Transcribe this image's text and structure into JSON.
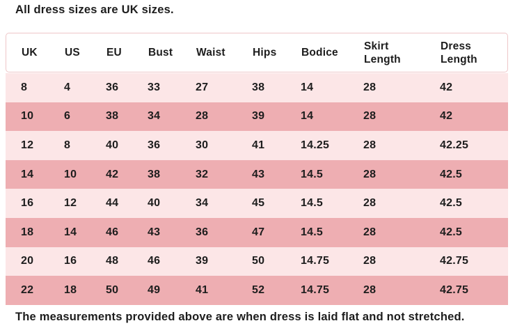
{
  "page": {
    "title": "All dress sizes are UK sizes.",
    "footnote": "The measurements provided above are when dress is laid flat and not stretched."
  },
  "table": {
    "columns": [
      "UK",
      "US",
      "EU",
      "Bust",
      "Waist",
      "Hips",
      "Bodice",
      "Skirt Length",
      "Dress Length"
    ],
    "rows": [
      [
        "8",
        "4",
        "36",
        "33",
        "27",
        "38",
        "14",
        "28",
        "42"
      ],
      [
        "10",
        "6",
        "38",
        "34",
        "28",
        "39",
        "14",
        "28",
        "42"
      ],
      [
        "12",
        "8",
        "40",
        "36",
        "30",
        "41",
        "14.25",
        "28",
        "42.25"
      ],
      [
        "14",
        "10",
        "42",
        "38",
        "32",
        "43",
        "14.5",
        "28",
        "42.5"
      ],
      [
        "16",
        "12",
        "44",
        "40",
        "34",
        "45",
        "14.5",
        "28",
        "42.5"
      ],
      [
        "18",
        "14",
        "46",
        "43",
        "36",
        "47",
        "14.5",
        "28",
        "42.5"
      ],
      [
        "20",
        "16",
        "48",
        "46",
        "39",
        "50",
        "14.75",
        "28",
        "42.75"
      ],
      [
        "22",
        "18",
        "50",
        "49",
        "41",
        "52",
        "14.75",
        "28",
        "42.75"
      ]
    ]
  },
  "colors": {
    "row_light": "#fce6e7",
    "row_dark": "#eeaeb2",
    "header_border": "#eec6c8",
    "text": "#1d1d1d"
  }
}
